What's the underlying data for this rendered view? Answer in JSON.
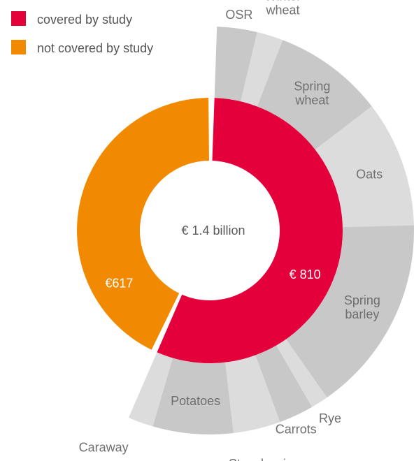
{
  "chart_data": {
    "type": "pie",
    "center_label": "€ 1.4 billion",
    "legend": [
      {
        "label": "covered by study",
        "color": "#e4003b"
      },
      {
        "label": "not covered by study",
        "color": "#f18a00"
      }
    ],
    "inner": [
      {
        "name": "covered by study",
        "value": 810,
        "label": "€ 810",
        "color": "#e4003b"
      },
      {
        "name": "not covered by study",
        "value": 617,
        "label": "€617",
        "color": "#f18a00"
      }
    ],
    "outer": [
      {
        "label": "OSR",
        "value": 46,
        "color": "#c8c8c8"
      },
      {
        "label": "Winter\nwheat",
        "value": 30,
        "color": "#dcdcdc"
      },
      {
        "label": "Spring\nwheat",
        "value": 127,
        "color": "#c8c8c8"
      },
      {
        "label": "Oats",
        "value": 145,
        "color": "#dcdcdc"
      },
      {
        "label": "Spring\nbarley",
        "value": 227,
        "color": "#c8c8c8"
      },
      {
        "label": "Rye",
        "value": 20,
        "color": "#dcdcdc"
      },
      {
        "label": "Carrots",
        "value": 40,
        "color": "#c8c8c8"
      },
      {
        "label": "Strawberries",
        "value": 54,
        "color": "#dcdcdc"
      },
      {
        "label": "Potatoes",
        "value": 92,
        "color": "#c8c8c8"
      },
      {
        "label": "Caraway",
        "value": 29,
        "color": "#dcdcdc"
      }
    ],
    "colors": {
      "label_text": "#6f6f6f",
      "slice_label_text": "#ffffff",
      "center_text": "#5a5a5a",
      "legend_text": "#555555"
    }
  }
}
